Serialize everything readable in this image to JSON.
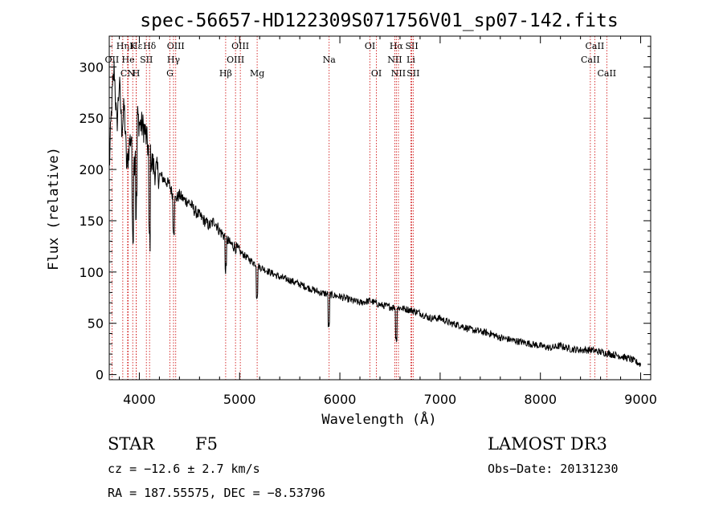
{
  "title": "spec-56657-HD122309S071756V01_sp07-142.fits",
  "chart_data": {
    "type": "line",
    "xlabel": "Wavelength (Å)",
    "ylabel": "Flux (relative)",
    "xlim": [
      3700,
      9100
    ],
    "ylim": [
      -5,
      330
    ],
    "xticks": [
      4000,
      5000,
      6000,
      7000,
      8000,
      9000
    ],
    "yticks": [
      0,
      50,
      100,
      150,
      200,
      250,
      300
    ],
    "grid": false,
    "series": [
      {
        "x": [
          3700,
          3725,
          3750,
          3775,
          3800,
          3825,
          3850,
          3875,
          3900,
          3925,
          3950,
          3975,
          4000,
          4050,
          4100,
          4150,
          4200,
          4250,
          4300,
          4350,
          4400,
          4450,
          4500,
          4550,
          4600,
          4650,
          4700,
          4750,
          4800,
          4850,
          4900,
          4950,
          5000,
          5100,
          5200,
          5300,
          5400,
          5500,
          5600,
          5700,
          5800,
          5900,
          6000,
          6100,
          6200,
          6300,
          6400,
          6500,
          6600,
          6700,
          6800,
          6900,
          7000,
          7100,
          7200,
          7300,
          7400,
          7500,
          7600,
          7700,
          7800,
          7900,
          8000,
          8100,
          8200,
          8300,
          8400,
          8500,
          8600,
          8700,
          8800,
          8900,
          9000
        ],
        "values": [
          200,
          265,
          300,
          240,
          285,
          240,
          260,
          200,
          225,
          235,
          205,
          255,
          245,
          240,
          215,
          200,
          195,
          190,
          185,
          170,
          175,
          170,
          168,
          160,
          155,
          150,
          145,
          150,
          140,
          135,
          128,
          125,
          120,
          112,
          105,
          100,
          95,
          92,
          88,
          84,
          80,
          78,
          76,
          73,
          70,
          72,
          68,
          66,
          65,
          63,
          60,
          55,
          55,
          50,
          48,
          44,
          42,
          40,
          36,
          34,
          32,
          30,
          28,
          26,
          28,
          25,
          24,
          24,
          22,
          20,
          18,
          15,
          10
        ]
      }
    ],
    "lines": [
      {
        "label": "Hδ",
        "wave": 4102,
        "row": 1
      },
      {
        "label": "OIII",
        "wave": 4363,
        "row": 1
      },
      {
        "label": "Hγ",
        "wave": 4341,
        "row": 2
      },
      {
        "label": "G",
        "wave": 4305,
        "row": 3
      },
      {
        "label": "Hβ",
        "wave": 4861,
        "row": 3
      },
      {
        "label": "OIII",
        "wave": 5007,
        "row": 1
      },
      {
        "label": "OIII",
        "wave": 4959,
        "row": 2
      },
      {
        "label": "Mg",
        "wave": 5175,
        "row": 3
      },
      {
        "label": "Na",
        "wave": 5893,
        "row": 2
      },
      {
        "label": "OI",
        "wave": 6300,
        "row": 1
      },
      {
        "label": "OI",
        "wave": 6364,
        "row": 3
      },
      {
        "label": "Hα",
        "wave": 6563,
        "row": 1
      },
      {
        "label": "NII",
        "wave": 6548,
        "row": 2
      },
      {
        "label": "NII",
        "wave": 6584,
        "row": 3
      },
      {
        "label": "SII",
        "wave": 6717,
        "row": 1
      },
      {
        "label": "Li",
        "wave": 6708,
        "row": 2
      },
      {
        "label": "SII",
        "wave": 6731,
        "row": 3
      },
      {
        "label": "CaII",
        "wave": 8542,
        "row": 1
      },
      {
        "label": "CaII",
        "wave": 8498,
        "row": 2
      },
      {
        "label": "CaII",
        "wave": 8662,
        "row": 3
      },
      {
        "label": "Hε",
        "wave": 3970,
        "row": 1
      },
      {
        "label": "K",
        "wave": 3934,
        "row": 1
      },
      {
        "label": "H",
        "wave": 3969,
        "row": 3
      },
      {
        "label": "SII",
        "wave": 4070,
        "row": 2
      },
      {
        "label": "OII",
        "wave": 3727,
        "row": 2
      },
      {
        "label": "Hη",
        "wave": 3835,
        "row": 1
      },
      {
        "label": "He",
        "wave": 3889,
        "row": 2
      },
      {
        "label": "CN",
        "wave": 3883,
        "row": 3
      }
    ]
  },
  "info": {
    "class_label": "STAR",
    "subclass": "F5",
    "survey": "LAMOST DR3",
    "cz": "cz = −12.6 ± 2.7 km/s",
    "obs_date": "Obs−Date: 20131230",
    "radec": "RA = 187.55575, DEC =  −8.53796"
  }
}
